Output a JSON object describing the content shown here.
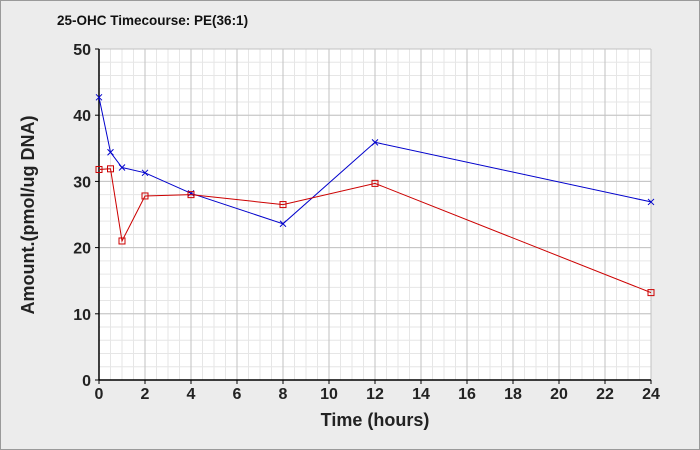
{
  "chart_data": {
    "type": "line",
    "title": "25-OHC Timecourse: PE(36:1)",
    "xlabel": "Time (hours)",
    "ylabel": "Amount.(pmol/ug DNA)",
    "xlim": [
      0,
      24
    ],
    "ylim": [
      0,
      50
    ],
    "xticks": [
      0,
      2,
      4,
      6,
      8,
      10,
      12,
      14,
      16,
      18,
      20,
      22,
      24
    ],
    "yticks": [
      0,
      10,
      20,
      30,
      40,
      50
    ],
    "grid": true,
    "minor_grid": true,
    "legend": "none",
    "series": [
      {
        "color": "#0000cc",
        "marker": "x",
        "x": [
          0,
          0.5,
          1,
          2,
          4,
          8,
          12,
          24
        ],
        "y": [
          42.7,
          34.4,
          32.1,
          31.3,
          28.2,
          23.6,
          35.9,
          26.9
        ]
      },
      {
        "color": "#cc0000",
        "marker": "square",
        "x": [
          0,
          0.5,
          1,
          2,
          4,
          8,
          12,
          24
        ],
        "y": [
          31.8,
          31.9,
          21.0,
          27.8,
          28.0,
          26.5,
          29.7,
          13.2
        ]
      }
    ]
  }
}
